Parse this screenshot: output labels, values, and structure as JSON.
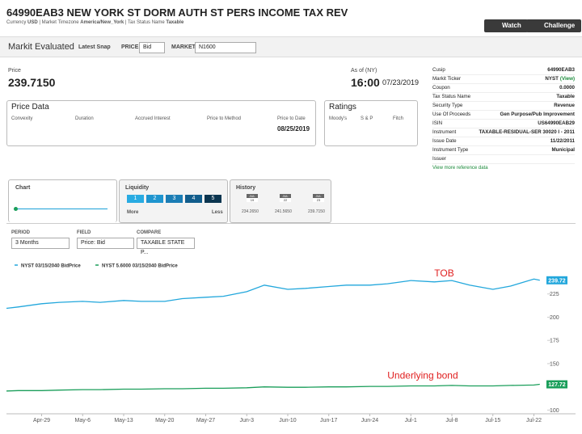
{
  "header": {
    "title": "64990EAB3 NEW YORK ST DORM AUTH ST PERS INCOME TAX REV",
    "meta": [
      "Currency",
      "USD",
      "Market Timezone",
      "America/New_York",
      "Tax Status Name",
      "Taxable"
    ],
    "buttons": [
      "Watch",
      "Challenge"
    ]
  },
  "toolbar": {
    "title": "Markit Evaluated",
    "latest": "Latest Snap",
    "price_label": "PRICE",
    "price_value": "Bid",
    "market_label": "MARKET",
    "market_value": "N1600"
  },
  "price": {
    "label": "Price",
    "value": "239.7150",
    "asof_label": "As of (NY)",
    "time": "16:00",
    "date": "07/23/2019"
  },
  "price_data": {
    "title": "Price Data",
    "columns": [
      "Convexity",
      "Duration",
      "Accrued Interest",
      "Price to Method",
      "Price to Date"
    ],
    "date": "08/25/2019"
  },
  "ratings": {
    "title": "Ratings",
    "columns": [
      "Moody's",
      "S & P",
      "Fitch"
    ]
  },
  "reference": {
    "rows": [
      [
        "Cusip",
        "64990EAB3"
      ],
      [
        "Markit Ticker",
        "NYST",
        "(View)"
      ],
      [
        "Coupon",
        "0.0000"
      ],
      [
        "Tax Status Name",
        "Taxable"
      ],
      [
        "Security Type",
        "Revenue"
      ],
      [
        "Use Of Proceeds",
        "Gen Purpose/Pub Improvement"
      ],
      [
        "ISIN",
        "US64990EAB29"
      ],
      [
        "Instrument",
        "TAXABLE-RESIDUAL-SER 30020 I - 2011"
      ],
      [
        "Issue Date",
        "11/22/2011"
      ],
      [
        "Instrument Type",
        "Municipal"
      ],
      [
        "Issuer"
      ]
    ],
    "link": "View more reference data"
  },
  "tabs": {
    "chart": "Chart",
    "liquidity": "Liquidity",
    "liquidity_levels": [
      "1",
      "2",
      "3",
      "4",
      "5"
    ],
    "more": "More",
    "less": "Less",
    "history": "History",
    "history_items": [
      {
        "month": "JUL",
        "day": "19",
        "value": "234.2650"
      },
      {
        "month": "JUL",
        "day": "22",
        "value": "241.5650"
      },
      {
        "month": "JUL",
        "day": "23",
        "value": "239.7150"
      }
    ]
  },
  "controls": {
    "period_label": "PERIOD",
    "period": "3 Months",
    "field_label": "FIELD",
    "field": "Price: Bid",
    "compare_label": "COMPARE",
    "compare": "TAXABLE STATE P..."
  },
  "chart_data": {
    "type": "line",
    "x": [
      "Apr-23",
      "Apr-25",
      "Apr-29",
      "May-2",
      "May-6",
      "May-9",
      "May-13",
      "May-16",
      "May-20",
      "May-23",
      "May-27",
      "May-30",
      "Jun-3",
      "Jun-6",
      "Jun-10",
      "Jun-13",
      "Jun-17",
      "Jun-20",
      "Jun-24",
      "Jun-27",
      "Jul-1",
      "Jul-5",
      "Jul-8",
      "Jul-11",
      "Jul-15",
      "Jul-18",
      "Jul-22",
      "Jul-23"
    ],
    "series": [
      {
        "name": "NYST 03/15/2040 BidPrice",
        "color": "#22a7dc",
        "values": [
          209.5,
          211,
          214.5,
          216,
          217,
          216,
          218,
          217,
          217,
          220,
          221.5,
          222.5,
          227.5,
          234.5,
          230,
          231,
          233,
          234.5,
          234.5,
          236,
          239.5,
          238,
          239.5,
          234.5,
          230,
          233.5,
          241,
          239.72
        ]
      },
      {
        "name": "NYST 5.6000 03/15/2040 BidPrice",
        "color": "#1a9e5a",
        "values": [
          120.5,
          121,
          121,
          121.5,
          122,
          122,
          122.5,
          122.5,
          123,
          123,
          123.5,
          123.5,
          124,
          125,
          124.5,
          124.5,
          125,
          125,
          125.5,
          125.5,
          126,
          126,
          126.5,
          126,
          126,
          126.5,
          127,
          127.72
        ]
      }
    ],
    "xlim": [
      "Apr-23",
      "Jul-24"
    ],
    "xticks": [
      "Apr-29",
      "May-6",
      "May-13",
      "May-20",
      "May-27",
      "Jun-3",
      "Jun-10",
      "Jun-17",
      "Jun-24",
      "Jul-1",
      "Jul-8",
      "Jul-15",
      "Jul-22"
    ],
    "ylim": [
      96,
      250
    ],
    "yticks": [
      100,
      150,
      175,
      200,
      225
    ],
    "grid": false,
    "annotations": [
      {
        "text": "TOB",
        "x": "Jul-5",
        "y": 244,
        "color": "#e02020"
      },
      {
        "text": "Underlying bond",
        "x": "Jun-27",
        "y": 134,
        "color": "#e02020"
      }
    ]
  }
}
